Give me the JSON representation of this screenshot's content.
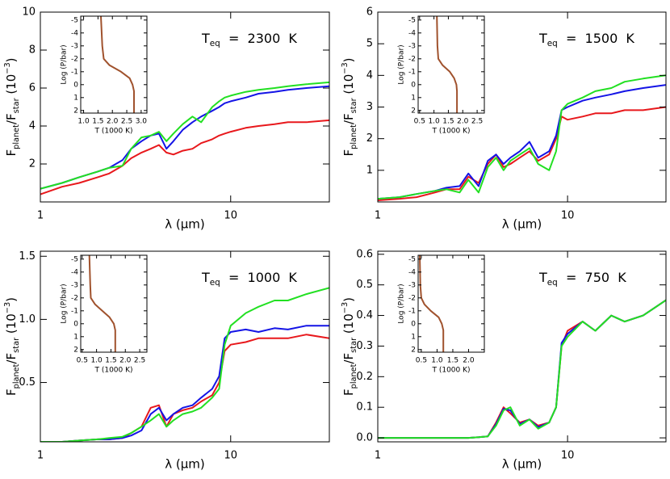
{
  "chart_data": [
    {
      "type": "line",
      "xscale": "log",
      "xlim": [
        1,
        33
      ],
      "xticks": [
        1,
        10
      ],
      "ylim": [
        0,
        10
      ],
      "yticks": [
        2,
        4,
        6,
        8,
        10
      ],
      "xlabel": "λ (μm)",
      "ylabel": [
        {
          "text": "F"
        },
        {
          "text": "planet",
          "style": "sub"
        },
        {
          "text": "/F"
        },
        {
          "text": "star",
          "style": "sub"
        },
        {
          "text": " (10"
        },
        {
          "text": "−3",
          "style": "super"
        },
        {
          "text": ")"
        }
      ],
      "annotation": [
        {
          "text": "T"
        },
        {
          "text": "eq",
          "style": "sub"
        },
        {
          "text": "  =  2300  K"
        }
      ],
      "x": [
        1,
        1.3,
        1.6,
        2,
        2.3,
        2.7,
        3,
        3.4,
        3.8,
        4.2,
        4.6,
        5,
        5.6,
        6.3,
        7,
        8,
        8.7,
        9.3,
        10,
        12,
        14,
        17,
        20,
        25,
        33
      ],
      "series": [
        {
          "color": "#e8181c",
          "values": [
            0.4,
            0.8,
            1.0,
            1.3,
            1.5,
            1.9,
            2.3,
            2.6,
            2.8,
            3.0,
            2.6,
            2.5,
            2.7,
            2.8,
            3.1,
            3.3,
            3.5,
            3.6,
            3.7,
            3.9,
            4.0,
            4.1,
            4.2,
            4.2,
            4.3
          ]
        },
        {
          "color": "#1414e6",
          "values": [
            0.7,
            1.0,
            1.3,
            1.6,
            1.8,
            2.2,
            2.8,
            3.2,
            3.5,
            3.6,
            2.8,
            3.2,
            3.8,
            4.2,
            4.5,
            4.8,
            5.0,
            5.2,
            5.3,
            5.5,
            5.7,
            5.8,
            5.9,
            6.0,
            6.1
          ]
        },
        {
          "color": "#22e022",
          "values": [
            0.7,
            1.0,
            1.3,
            1.6,
            1.8,
            1.9,
            2.8,
            3.4,
            3.5,
            3.7,
            3.2,
            3.6,
            4.1,
            4.5,
            4.2,
            5.0,
            5.3,
            5.5,
            5.6,
            5.8,
            5.9,
            6.0,
            6.1,
            6.2,
            6.3
          ]
        }
      ],
      "inset": {
        "type": "line",
        "color": "#a0522d",
        "xlim": [
          0.9,
          3.2
        ],
        "ylim": [
          2.2,
          -5.3
        ],
        "xticks": [
          {
            "value": 1,
            "label": "1.0"
          },
          1.5,
          {
            "value": 2,
            "label": "2.0"
          },
          2.5,
          {
            "value": 3,
            "label": "3.0"
          }
        ],
        "yticks": [
          -5,
          -4,
          -3,
          -2,
          -1,
          0,
          1,
          2
        ],
        "xlabel": "T (1000 K)",
        "ylabel": "Log (P/bar)",
        "x": [
          1.6,
          1.65,
          1.7,
          1.9,
          2.3,
          2.6,
          2.7,
          2.75,
          2.75
        ],
        "y": [
          -5.3,
          -3,
          -2,
          -1.5,
          -1,
          -0.5,
          0,
          0.5,
          2.2
        ]
      }
    },
    {
      "type": "line",
      "xscale": "log",
      "xlim": [
        1,
        33
      ],
      "xticks": [
        1,
        10
      ],
      "ylim": [
        0,
        6
      ],
      "yticks": [
        1,
        2,
        3,
        4,
        5,
        6
      ],
      "xlabel": "λ (μm)",
      "ylabel": [
        {
          "text": "F"
        },
        {
          "text": "planet",
          "style": "sub"
        },
        {
          "text": "/F"
        },
        {
          "text": "star",
          "style": "sub"
        },
        {
          "text": " (10"
        },
        {
          "text": "−3",
          "style": "super"
        },
        {
          "text": ")"
        }
      ],
      "annotation": [
        {
          "text": "T"
        },
        {
          "text": "eq",
          "style": "sub"
        },
        {
          "text": "  =  1500  K"
        }
      ],
      "x": [
        1,
        1.3,
        1.6,
        2,
        2.3,
        2.7,
        3,
        3.4,
        3.8,
        4.2,
        4.6,
        5,
        5.6,
        6.3,
        7,
        8,
        8.7,
        9.3,
        10,
        12,
        14,
        17,
        20,
        25,
        33
      ],
      "series": [
        {
          "color": "#e8181c",
          "values": [
            0.05,
            0.1,
            0.15,
            0.3,
            0.4,
            0.4,
            0.8,
            0.6,
            1.2,
            1.5,
            1.1,
            1.2,
            1.4,
            1.6,
            1.3,
            1.5,
            2.0,
            2.7,
            2.6,
            2.7,
            2.8,
            2.8,
            2.9,
            2.9,
            3.0
          ]
        },
        {
          "color": "#1414e6",
          "values": [
            0.1,
            0.15,
            0.25,
            0.35,
            0.45,
            0.5,
            0.9,
            0.5,
            1.3,
            1.5,
            1.2,
            1.4,
            1.6,
            1.9,
            1.4,
            1.6,
            2.1,
            2.9,
            3.0,
            3.2,
            3.3,
            3.4,
            3.5,
            3.6,
            3.7
          ]
        },
        {
          "color": "#22e022",
          "values": [
            0.1,
            0.15,
            0.25,
            0.35,
            0.4,
            0.3,
            0.7,
            0.3,
            1.1,
            1.4,
            1.0,
            1.3,
            1.5,
            1.7,
            1.2,
            1.0,
            1.6,
            2.9,
            3.1,
            3.3,
            3.5,
            3.6,
            3.8,
            3.9,
            4.0
          ]
        }
      ],
      "inset": {
        "type": "line",
        "color": "#a0522d",
        "xlim": [
          0.45,
          2.75
        ],
        "ylim": [
          2.2,
          -5.3
        ],
        "xticks": [
          0.5,
          {
            "value": 1,
            "label": "1.0"
          },
          1.5,
          {
            "value": 2,
            "label": "2.0"
          },
          2.5
        ],
        "yticks": [
          -5,
          -4,
          -3,
          -2,
          -1,
          0,
          1,
          2
        ],
        "xlabel": "T (1000 K)",
        "ylabel": "Log (P/bar)",
        "x": [
          1.1,
          1.12,
          1.15,
          1.3,
          1.55,
          1.7,
          1.78,
          1.8,
          1.8
        ],
        "y": [
          -5.3,
          -3,
          -2,
          -1.5,
          -1,
          -0.5,
          0,
          0.5,
          2.2
        ]
      }
    },
    {
      "type": "line",
      "xscale": "log",
      "xlim": [
        1,
        33
      ],
      "xticks": [
        1,
        10
      ],
      "ylim": [
        0.03,
        1.54
      ],
      "yticks": [
        0.5,
        {
          "value": 1,
          "label": "1.0"
        },
        1.5
      ],
      "xlabel": "λ (μm)",
      "ylabel": [
        {
          "text": "F"
        },
        {
          "text": "planet",
          "style": "sub"
        },
        {
          "text": "/F"
        },
        {
          "text": "star",
          "style": "sub"
        },
        {
          "text": " (10"
        },
        {
          "text": "−3",
          "style": "super"
        },
        {
          "text": ")"
        }
      ],
      "annotation": [
        {
          "text": "T"
        },
        {
          "text": "eq",
          "style": "sub"
        },
        {
          "text": "  =  1000  K"
        }
      ],
      "x": [
        1,
        1.3,
        1.6,
        2,
        2.3,
        2.7,
        3,
        3.4,
        3.8,
        4.2,
        4.6,
        5,
        5.6,
        6.3,
        7,
        8,
        8.7,
        9.3,
        10,
        12,
        14,
        17,
        20,
        25,
        33
      ],
      "series": [
        {
          "color": "#e8181c",
          "values": [
            0.03,
            0.03,
            0.04,
            0.05,
            0.05,
            0.06,
            0.1,
            0.15,
            0.3,
            0.32,
            0.15,
            0.25,
            0.28,
            0.3,
            0.35,
            0.4,
            0.5,
            0.75,
            0.8,
            0.82,
            0.85,
            0.85,
            0.85,
            0.88,
            0.85
          ]
        },
        {
          "color": "#1414e6",
          "values": [
            0.03,
            0.03,
            0.04,
            0.05,
            0.05,
            0.06,
            0.08,
            0.12,
            0.25,
            0.3,
            0.2,
            0.25,
            0.3,
            0.32,
            0.38,
            0.45,
            0.55,
            0.85,
            0.9,
            0.92,
            0.9,
            0.93,
            0.92,
            0.95,
            0.95
          ]
        },
        {
          "color": "#22e022",
          "values": [
            0.03,
            0.03,
            0.04,
            0.05,
            0.06,
            0.07,
            0.1,
            0.15,
            0.2,
            0.25,
            0.15,
            0.2,
            0.25,
            0.27,
            0.3,
            0.38,
            0.45,
            0.8,
            0.95,
            1.05,
            1.1,
            1.15,
            1.15,
            1.2,
            1.25
          ]
        }
      ],
      "inset": {
        "type": "line",
        "color": "#a0522d",
        "xlim": [
          0.45,
          2.75
        ],
        "ylim": [
          2.2,
          -5.3
        ],
        "xticks": [
          0.5,
          {
            "value": 1,
            "label": "1.0"
          },
          1.5,
          {
            "value": 2,
            "label": "2.0"
          },
          2.5
        ],
        "yticks": [
          -5,
          -4,
          -3,
          -2,
          -1,
          0,
          1,
          2
        ],
        "xlabel": "T (1000 K)",
        "ylabel": "Log (P/bar)",
        "x": [
          0.75,
          0.78,
          0.8,
          0.95,
          1.2,
          1.45,
          1.6,
          1.65,
          1.65
        ],
        "y": [
          -5.3,
          -3,
          -2,
          -1.5,
          -1,
          -0.5,
          0,
          0.5,
          2.2
        ]
      }
    },
    {
      "type": "line",
      "xscale": "log",
      "xlim": [
        1,
        33
      ],
      "xticks": [
        1,
        10
      ],
      "ylim": [
        -0.013,
        0.61
      ],
      "yticks": [
        {
          "value": 0,
          "label": "0.0"
        },
        0.1,
        0.2,
        0.3,
        0.4,
        0.5,
        0.6
      ],
      "xlabel": "λ (μm)",
      "ylabel": [
        {
          "text": "F"
        },
        {
          "text": "planet",
          "style": "sub"
        },
        {
          "text": "/F"
        },
        {
          "text": "star",
          "style": "sub"
        },
        {
          "text": " (10"
        },
        {
          "text": "−3",
          "style": "super"
        },
        {
          "text": ")"
        }
      ],
      "annotation": [
        {
          "text": "T"
        },
        {
          "text": "eq",
          "style": "sub"
        },
        {
          "text": "  =  750  K"
        }
      ],
      "x": [
        1,
        1.3,
        1.6,
        2,
        2.3,
        2.7,
        3,
        3.4,
        3.8,
        4.2,
        4.6,
        5,
        5.6,
        6.3,
        7,
        8,
        8.7,
        9.3,
        10,
        12,
        14,
        17,
        20,
        25,
        33
      ],
      "series": [
        {
          "color": "#e8181c",
          "values": [
            0,
            0,
            0,
            0,
            0,
            0,
            0,
            0.002,
            0.005,
            0.05,
            0.1,
            0.08,
            0.05,
            0.06,
            0.04,
            0.05,
            0.1,
            0.3,
            0.35,
            0.38,
            0.35,
            0.4,
            0.38,
            0.4,
            0.45
          ]
        },
        {
          "color": "#1414e6",
          "values": [
            0,
            0,
            0,
            0,
            0,
            0,
            0,
            0.002,
            0.005,
            0.045,
            0.095,
            0.09,
            0.045,
            0.06,
            0.035,
            0.05,
            0.1,
            0.31,
            0.34,
            0.38,
            0.35,
            0.4,
            0.38,
            0.4,
            0.45
          ]
        },
        {
          "color": "#22e022",
          "values": [
            0,
            0,
            0,
            0,
            0,
            0,
            0,
            0.002,
            0.005,
            0.04,
            0.09,
            0.1,
            0.04,
            0.06,
            0.03,
            0.05,
            0.1,
            0.3,
            0.33,
            0.38,
            0.35,
            0.4,
            0.38,
            0.4,
            0.45
          ]
        }
      ],
      "inset": {
        "type": "line",
        "color": "#a0522d",
        "xlim": [
          0.4,
          2.5
        ],
        "ylim": [
          2.2,
          -5.3
        ],
        "xticks": [
          0.5,
          {
            "value": 1,
            "label": "1.0"
          },
          1.5,
          {
            "value": 2,
            "label": "2.0"
          }
        ],
        "yticks": [
          -5,
          -4,
          -3,
          -2,
          -1,
          0,
          1,
          2
        ],
        "xlabel": "T (1000 K)",
        "ylabel": "Log (P/bar)",
        "x": [
          0.45,
          0.47,
          0.5,
          0.6,
          0.8,
          1.05,
          1.15,
          1.2,
          1.2
        ],
        "y": [
          -5.3,
          -3,
          -2,
          -1.5,
          -1,
          -0.5,
          0,
          0.5,
          2.2
        ]
      }
    }
  ]
}
